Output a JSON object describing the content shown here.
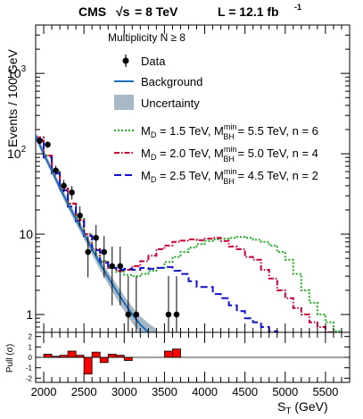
{
  "header": {
    "experiment": "CMS",
    "energy_prefix": "√s",
    "energy_value": "= 8 TeV",
    "lumi_prefix": "L = 12.1 fb",
    "lumi_exp": "-1"
  },
  "legend": {
    "title_main": "Multiplicity N",
    "title_rest": "≥ 8",
    "data": "Data",
    "background": "Background",
    "uncertainty": "Uncertainty",
    "signals": [
      {
        "md": "M",
        "md_sub": "D",
        "md_val": " = 1.5 TeV, M",
        "sup": "min",
        "sub": "BH",
        "rest": " = 5.5 TeV, n = 6"
      },
      {
        "md": "M",
        "md_sub": "D",
        "md_val": " = 2.0 TeV, M",
        "sup": "min",
        "sub": "BH",
        "rest": " = 5.0 TeV, n = 4"
      },
      {
        "md": "M",
        "md_sub": "D",
        "md_val": " = 2.5 TeV, M",
        "sup": "min",
        "sub": "BH",
        "rest": " = 4.5 TeV, n = 2"
      }
    ]
  },
  "colors": {
    "data": "#000000",
    "background": "#1f6fb7",
    "uncertainty": "#a9b8c6",
    "signal1": "#22aa22",
    "signal2": "#cc0033",
    "signal3": "#1111cc",
    "pull": "#ff0000"
  },
  "chart_data": {
    "type": "line",
    "xlabel_main": "S",
    "xlabel_sub": "T",
    "xlabel_unit": " (GeV)",
    "ylabel": "Events / 100 GeV",
    "ylabel_pull": "Pull (σ)",
    "xlim": [
      1900,
      5800
    ],
    "ylim": [
      0.6,
      4000
    ],
    "yscale": "log",
    "x_ticks": [
      2000,
      2500,
      3000,
      3500,
      4000,
      4500,
      5000,
      5500
    ],
    "y_ticks": [
      {
        "value": 1,
        "base": "1",
        "exp": ""
      },
      {
        "value": 10,
        "base": "10",
        "exp": ""
      },
      {
        "value": 100,
        "base": "10",
        "exp": "2"
      },
      {
        "value": 1000,
        "base": "10",
        "exp": "3"
      }
    ],
    "pull_ylim": [
      -2.4,
      2.4
    ],
    "pull_ticks": [
      -2,
      -1,
      0,
      1,
      2
    ],
    "data": [
      {
        "x": 1950,
        "y": 145
      },
      {
        "x": 2050,
        "y": 130
      },
      {
        "x": 2150,
        "y": 62
      },
      {
        "x": 2250,
        "y": 40
      },
      {
        "x": 2350,
        "y": 33
      },
      {
        "x": 2450,
        "y": 17
      },
      {
        "x": 2550,
        "y": 6
      },
      {
        "x": 2650,
        "y": 9
      },
      {
        "x": 2750,
        "y": 6
      },
      {
        "x": 2850,
        "y": 4
      },
      {
        "x": 2950,
        "y": 4
      },
      {
        "x": 3050,
        "y": 1
      },
      {
        "x": 3150,
        "y": 1
      },
      {
        "x": 3550,
        "y": 1
      },
      {
        "x": 3650,
        "y": 1
      }
    ],
    "background": {
      "x": [
        1900,
        2000,
        2100,
        2200,
        2300,
        2400,
        2500,
        2600,
        2700,
        2800,
        2900,
        3000,
        3100,
        3200,
        3300,
        3400
      ],
      "y": [
        170,
        100,
        62,
        38,
        24,
        15.5,
        10,
        6.5,
        4.3,
        2.9,
        2.0,
        1.4,
        1.0,
        0.75,
        0.6,
        0.5
      ],
      "unc_low": [
        150,
        90,
        56,
        34,
        21,
        13.5,
        8.7,
        5.6,
        3.6,
        2.4,
        1.6,
        1.1,
        0.78,
        0.58,
        0.45,
        0.37
      ],
      "unc_high": [
        190,
        112,
        69,
        42,
        27,
        17.5,
        11.5,
        7.5,
        5.0,
        3.4,
        2.4,
        1.7,
        1.25,
        0.95,
        0.78,
        0.66
      ]
    },
    "series": [
      {
        "name": "MD = 1.5 TeV, MBH min = 5.5 TeV, n = 6",
        "edges": [
          1900,
          2000,
          2100,
          2200,
          2300,
          2400,
          2500,
          2600,
          2700,
          2800,
          2900,
          3000,
          3100,
          3200,
          3300,
          3400,
          3500,
          3600,
          3700,
          3800,
          3900,
          4000,
          4100,
          4200,
          4300,
          4400,
          4500,
          4600,
          4700,
          4800,
          4900,
          5000,
          5100,
          5200,
          5300,
          5400,
          5500,
          5600,
          5700
        ],
        "values": [
          160,
          95,
          60,
          37,
          24,
          15.5,
          10,
          6.5,
          4.6,
          3.8,
          3.4,
          3.1,
          3.0,
          3.2,
          3.5,
          3.8,
          4.5,
          5.2,
          6.0,
          6.8,
          7.5,
          8.2,
          8.6,
          8.8,
          9.0,
          9.2,
          9.0,
          8.5,
          8.0,
          7.2,
          6.0,
          4.8,
          3.2,
          2.0,
          1.4,
          1.0,
          0.8,
          0.62
        ]
      },
      {
        "name": "MD = 2.0 TeV, MBH min = 5.0 TeV, n = 4",
        "edges": [
          1900,
          2000,
          2100,
          2200,
          2300,
          2400,
          2500,
          2600,
          2700,
          2800,
          2900,
          3000,
          3100,
          3200,
          3300,
          3400,
          3500,
          3600,
          3700,
          3800,
          3900,
          4000,
          4100,
          4200,
          4300,
          4400,
          4500,
          4600,
          4700,
          4800,
          4900,
          5000,
          5100,
          5200,
          5300,
          5400,
          5500,
          5600
        ],
        "values": [
          160,
          95,
          60,
          37,
          24,
          15,
          10,
          6.5,
          4.5,
          3.8,
          3.5,
          3.6,
          4.0,
          4.6,
          5.4,
          6.5,
          7.2,
          8.0,
          8.3,
          8.6,
          8.4,
          8.8,
          9.0,
          8.2,
          7.0,
          6.5,
          5.2,
          4.8,
          3.6,
          2.8,
          2.0,
          1.6,
          1.2,
          1.0,
          0.8,
          0.7,
          0.6
        ]
      },
      {
        "name": "MD = 2.5 TeV, MBH min = 4.5 TeV, n = 2",
        "edges": [
          1900,
          2000,
          2100,
          2200,
          2300,
          2400,
          2500,
          2600,
          2700,
          2800,
          2900,
          3000,
          3100,
          3200,
          3300,
          3400,
          3500,
          3600,
          3700,
          3800,
          3900,
          4000,
          4100,
          4200,
          4300,
          4400,
          4500,
          4600,
          4700,
          4800,
          4900,
          5000
        ],
        "values": [
          150,
          90,
          57,
          35,
          22,
          14.5,
          9.5,
          6.3,
          4.4,
          3.8,
          3.6,
          3.7,
          3.6,
          3.8,
          3.7,
          3.8,
          3.9,
          3.5,
          3.2,
          2.6,
          2.2,
          2.2,
          1.8,
          1.6,
          1.3,
          1.1,
          0.9,
          0.8,
          0.7,
          0.62,
          0.55
        ]
      }
    ],
    "pull": {
      "edges": [
        1900,
        2000,
        2100,
        2200,
        2300,
        2400,
        2500,
        2600,
        2700,
        2800,
        2900,
        3000,
        3100,
        3200,
        3300,
        3400,
        3500,
        3600,
        3700
      ],
      "values": [
        0.0,
        0.3,
        0.1,
        0.2,
        0.6,
        0.2,
        -1.6,
        0.5,
        -0.5,
        0.3,
        0.2,
        -0.3,
        0.0,
        0.0,
        0.0,
        0.0,
        0.6,
        0.8
      ]
    }
  }
}
